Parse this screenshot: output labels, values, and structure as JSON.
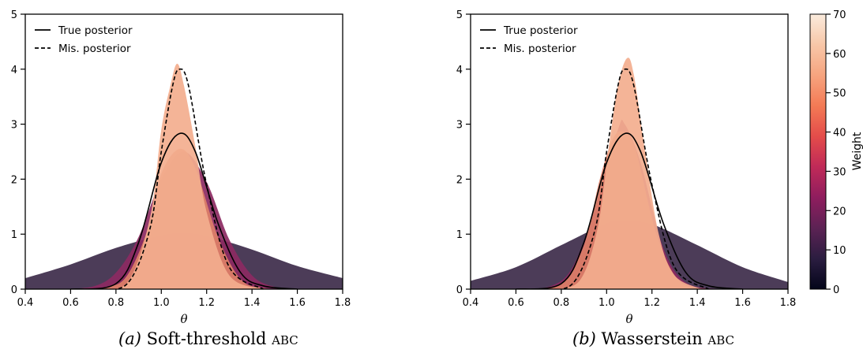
{
  "chart_data": [
    {
      "type": "area",
      "caption_letter": "(a)",
      "caption_text": "Soft-threshold",
      "caption_sc": "abc",
      "xlabel": "θ",
      "ylabel": "",
      "xlim": [
        0.4,
        1.8
      ],
      "ylim": [
        0,
        5
      ],
      "xticks": [
        "0.4",
        "0.6",
        "0.8",
        "1.0",
        "1.2",
        "1.4",
        "1.6",
        "1.8"
      ],
      "yticks": [
        "0",
        "1",
        "2",
        "3",
        "4",
        "5"
      ],
      "legend_position": "upper-left",
      "legend": [
        "True posterior",
        "Mis. posterior"
      ],
      "weighted_densities": [
        {
          "weight": 12,
          "color": "#3d2b4a",
          "x": [
            0.4,
            0.6,
            0.8,
            1.0,
            1.1,
            1.2,
            1.4,
            1.6,
            1.8
          ],
          "y": [
            0.2,
            0.45,
            0.75,
            0.98,
            1.02,
            0.97,
            0.72,
            0.42,
            0.2
          ]
        },
        {
          "weight": 30,
          "color": "#8c2a62",
          "x": [
            0.55,
            0.7,
            0.8,
            0.9,
            1.0,
            1.1,
            1.2,
            1.3,
            1.4,
            1.5,
            1.6
          ],
          "y": [
            0.0,
            0.05,
            0.3,
            0.95,
            2.0,
            2.5,
            1.95,
            0.9,
            0.25,
            0.04,
            0.0
          ]
        },
        {
          "weight": 52,
          "color": "#dd8068",
          "x": [
            0.6,
            0.75,
            0.85,
            0.95,
            1.0,
            1.08,
            1.15,
            1.25,
            1.35,
            1.45,
            1.55
          ],
          "y": [
            0.0,
            0.03,
            0.25,
            1.2,
            2.1,
            2.55,
            2.2,
            0.95,
            0.18,
            0.02,
            0.0
          ]
        },
        {
          "weight": 62,
          "color": "#f3ae8e",
          "x": [
            0.7,
            0.85,
            0.95,
            1.0,
            1.04,
            1.07,
            1.1,
            1.15,
            1.2,
            1.3,
            1.45
          ],
          "y": [
            0.0,
            0.12,
            1.3,
            2.9,
            3.7,
            4.1,
            3.7,
            2.6,
            1.4,
            0.25,
            0.0
          ]
        }
      ],
      "series": [
        {
          "name": "True posterior",
          "style": "solid",
          "x": [
            0.6,
            0.8,
            0.9,
            1.0,
            1.08,
            1.15,
            1.25,
            1.35,
            1.45,
            1.6
          ],
          "y": [
            0.0,
            0.1,
            0.85,
            2.3,
            2.83,
            2.5,
            1.2,
            0.3,
            0.06,
            0.0
          ]
        },
        {
          "name": "Mis. posterior",
          "style": "dashed",
          "x": [
            0.7,
            0.85,
            0.95,
            1.0,
            1.05,
            1.08,
            1.12,
            1.2,
            1.3,
            1.45
          ],
          "y": [
            0.0,
            0.1,
            1.1,
            2.5,
            3.7,
            4.0,
            3.7,
            1.9,
            0.4,
            0.0
          ]
        }
      ]
    },
    {
      "type": "area",
      "caption_letter": "(b)",
      "caption_text": "Wasserstein",
      "caption_sc": "abc",
      "xlabel": "θ",
      "ylabel": "",
      "xlim": [
        0.4,
        1.8
      ],
      "ylim": [
        0,
        5
      ],
      "xticks": [
        "0.4",
        "0.6",
        "0.8",
        "1.0",
        "1.2",
        "1.4",
        "1.6",
        "1.8"
      ],
      "yticks": [
        "0",
        "1",
        "2",
        "3",
        "4",
        "5"
      ],
      "legend_position": "upper-left",
      "legend": [
        "True posterior",
        "Mis. posterior"
      ],
      "weighted_densities": [
        {
          "weight": 12,
          "color": "#3d2b4a",
          "x": [
            0.4,
            0.6,
            0.8,
            1.0,
            1.07,
            1.2,
            1.4,
            1.6,
            1.8
          ],
          "y": [
            0.15,
            0.4,
            0.8,
            1.2,
            1.25,
            1.18,
            0.8,
            0.4,
            0.13
          ]
        },
        {
          "weight": 30,
          "color": "#8c2a62",
          "x": [
            0.6,
            0.75,
            0.85,
            0.95,
            1.05,
            1.08,
            1.15,
            1.25,
            1.35,
            1.5
          ],
          "y": [
            0.0,
            0.05,
            0.4,
            1.5,
            2.9,
            3.0,
            2.3,
            0.75,
            0.12,
            0.0
          ]
        },
        {
          "weight": 52,
          "color": "#dd8068",
          "x": [
            0.65,
            0.8,
            0.9,
            0.97,
            1.03,
            1.08,
            1.13,
            1.22,
            1.32,
            1.45
          ],
          "y": [
            0.0,
            0.1,
            0.8,
            2.0,
            2.75,
            2.85,
            2.5,
            1.0,
            0.15,
            0.0
          ]
        },
        {
          "weight": 62,
          "color": "#f3ae8e",
          "x": [
            0.75,
            0.88,
            0.96,
            1.01,
            1.05,
            1.09,
            1.12,
            1.17,
            1.23,
            1.3,
            1.42
          ],
          "y": [
            0.0,
            0.15,
            1.1,
            2.6,
            3.7,
            4.2,
            3.9,
            2.5,
            1.0,
            0.25,
            0.0
          ]
        }
      ],
      "series": [
        {
          "name": "True posterior",
          "style": "solid",
          "x": [
            0.6,
            0.8,
            0.9,
            1.0,
            1.08,
            1.15,
            1.25,
            1.35,
            1.45,
            1.6
          ],
          "y": [
            0.0,
            0.1,
            0.85,
            2.3,
            2.83,
            2.5,
            1.2,
            0.3,
            0.06,
            0.0
          ]
        },
        {
          "name": "Mis. posterior",
          "style": "dashed",
          "x": [
            0.7,
            0.85,
            0.95,
            1.0,
            1.05,
            1.08,
            1.12,
            1.2,
            1.3,
            1.45
          ],
          "y": [
            0.0,
            0.1,
            1.1,
            2.5,
            3.7,
            4.0,
            3.7,
            1.9,
            0.4,
            0.0
          ]
        }
      ]
    }
  ],
  "colorbar": {
    "label": "Weight",
    "min": 0,
    "max": 70,
    "ticks": [
      "0",
      "10",
      "20",
      "30",
      "40",
      "50",
      "60",
      "70"
    ],
    "stops": [
      "#03051a",
      "#2b1d40",
      "#5c2254",
      "#8f1d5e",
      "#c02a58",
      "#e44c4a",
      "#f37a55",
      "#f6a47f",
      "#f8c7a8",
      "#faebdd"
    ]
  }
}
